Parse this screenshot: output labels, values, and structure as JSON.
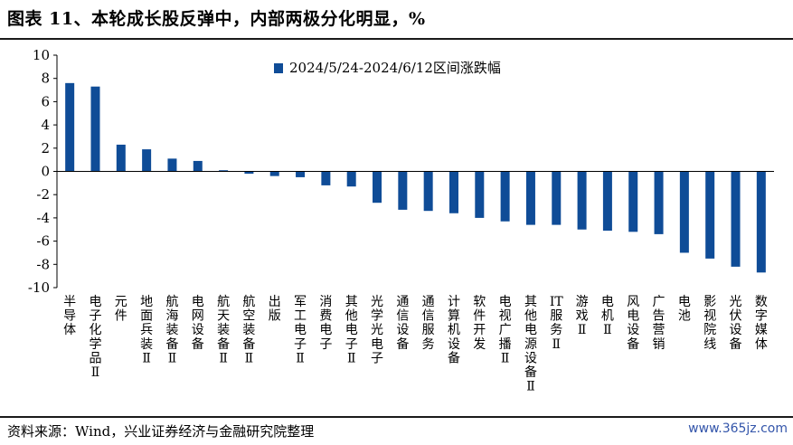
{
  "title": "图表 11、本轮成长股反弹中，内部两极分化明显，%",
  "source": "资料来源：Wind，兴业证券经济与金融研究院整理",
  "watermark": "www.365jz.com",
  "colors": {
    "bar": "#0f4c97",
    "axis": "#000000"
  },
  "chart_data": {
    "type": "bar",
    "title": "",
    "xlabel": "",
    "ylabel": "",
    "ylim": [
      -10,
      10
    ],
    "yticks": [
      10,
      8,
      6,
      4,
      2,
      0,
      -2,
      -4,
      -6,
      -8,
      -10
    ],
    "legend_position": "top",
    "categories": [
      "半导体",
      "电子化学品Ⅱ",
      "元件",
      "地面兵装Ⅱ",
      "航海装备Ⅱ",
      "电网设备",
      "航天装备Ⅱ",
      "航空装备Ⅱ",
      "出版",
      "军工电子Ⅱ",
      "消费电子",
      "其他电子Ⅱ",
      "光学光电子",
      "通信设备",
      "通信服务",
      "计算机设备",
      "软件开发",
      "电视广播Ⅱ",
      "其他电源设备Ⅱ",
      "IT服务Ⅱ",
      "游戏Ⅱ",
      "电机Ⅱ",
      "风电设备",
      "广告营销",
      "电池",
      "影视院线",
      "光伏设备",
      "数字媒体"
    ],
    "series": [
      {
        "name": "2024/5/24-2024/6/12区间涨跌幅",
        "values": [
          7.6,
          7.3,
          2.3,
          1.9,
          1.1,
          0.9,
          0.1,
          -0.2,
          -0.4,
          -0.5,
          -1.2,
          -1.3,
          -2.7,
          -3.3,
          -3.4,
          -3.6,
          -4.0,
          -4.3,
          -4.6,
          -4.6,
          -5.0,
          -5.1,
          -5.2,
          -5.4,
          -7.0,
          -7.5,
          -8.2,
          -8.7
        ]
      }
    ]
  }
}
